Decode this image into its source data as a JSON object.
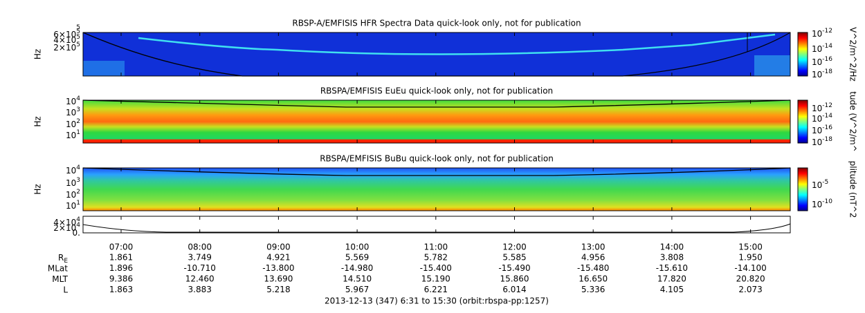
{
  "panels": [
    {
      "title": "RBSP-A/EMFISIS  HFR Spectra Data quick-look only, not for publication",
      "y_label": "Hz",
      "y_ticks": [
        {
          "sup": "5"
        },
        {
          "text": "6×10",
          "sup": "5"
        },
        {
          "text": "4×10",
          "sup": "5"
        },
        {
          "text": "2×10",
          "sup": "5"
        }
      ],
      "colorbar_label": "V^2/m^2/Hz",
      "colorbar_ticks": [
        {
          "text": "10",
          "sup": "-12"
        },
        {
          "text": "10",
          "sup": "-14"
        },
        {
          "text": "10",
          "sup": "-16"
        },
        {
          "text": "10",
          "sup": "-18"
        }
      ]
    },
    {
      "title": "RBSPA/EMFISIS  EuEu quick-look only, not for publication",
      "y_label": "Hz",
      "y_ticks": [
        {
          "text": "10",
          "sup": "4"
        },
        {
          "text": "10",
          "sup": "3"
        },
        {
          "text": "10",
          "sup": "2"
        },
        {
          "text": "10",
          "sup": "1"
        }
      ],
      "colorbar_label": "tude (V^2/m^",
      "colorbar_ticks": [
        {
          "text": "10",
          "sup": "-12"
        },
        {
          "text": "10",
          "sup": "-14"
        },
        {
          "text": "10",
          "sup": "-16"
        },
        {
          "text": "10",
          "sup": "-18"
        }
      ]
    },
    {
      "title": "RBSPA/EMFISIS  BuBu quick-look only, not for publication",
      "y_label": "Hz",
      "y_ticks": [
        {
          "text": "10",
          "sup": "4"
        },
        {
          "text": "10",
          "sup": "3"
        },
        {
          "text": "10",
          "sup": "2"
        },
        {
          "text": "10",
          "sup": "1"
        }
      ],
      "colorbar_label": "plitude (nT^2",
      "colorbar_ticks": [
        {
          "text": "10",
          "sup": "-5"
        },
        {
          "text": "10",
          "sup": "-10"
        }
      ]
    },
    {
      "y_ticks": [
        {
          "text": "4×10",
          "sup": "4"
        },
        {
          "text": "2×10",
          "sup": "4"
        },
        {
          "text": "0."
        }
      ]
    }
  ],
  "times": [
    "07:00",
    "08:00",
    "09:00",
    "10:00",
    "11:00",
    "12:00",
    "13:00",
    "14:00",
    "15:00"
  ],
  "ephemeris": [
    {
      "label": {
        "text": "R",
        "sub": "E"
      },
      "values": [
        "1.861",
        "3.749",
        "4.921",
        "5.569",
        "5.782",
        "5.585",
        "4.956",
        "3.808",
        "1.950"
      ]
    },
    {
      "label": {
        "text": "MLat"
      },
      "values": [
        "1.896",
        "-10.710",
        "-13.800",
        "-14.980",
        "-15.400",
        "-15.490",
        "-15.480",
        "-15.610",
        "-14.100"
      ]
    },
    {
      "label": {
        "text": "MLT"
      },
      "values": [
        "9.386",
        "12.460",
        "13.690",
        "14.510",
        "15.190",
        "15.860",
        "16.650",
        "17.820",
        "20.820"
      ]
    },
    {
      "label": {
        "text": "L"
      },
      "values": [
        "1.863",
        "3.883",
        "5.218",
        "5.967",
        "6.221",
        "6.014",
        "5.336",
        "4.105",
        "2.073"
      ]
    }
  ],
  "footer": "2013-12-13 (347) 6:31 to 15:30 (orbit:rbspa-pp:1257)"
}
